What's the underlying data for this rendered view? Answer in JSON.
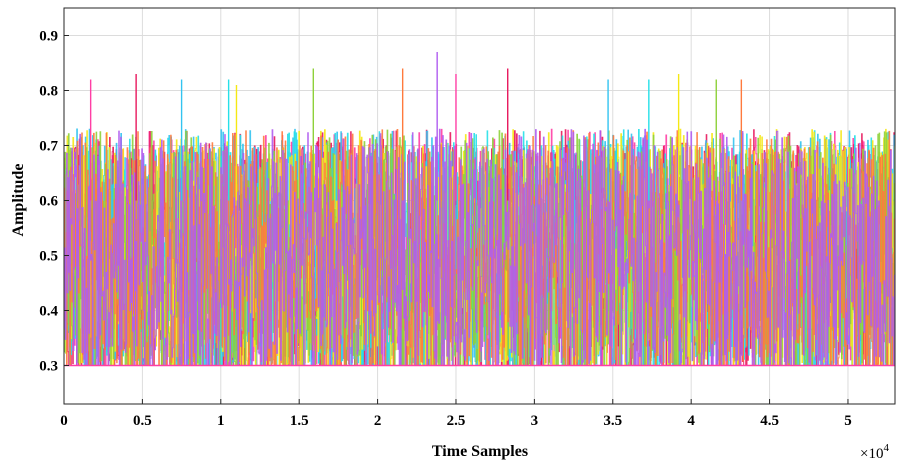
{
  "chart_data": {
    "type": "line",
    "title": "",
    "xlabel": "Time Samples",
    "ylabel": "Amplitude",
    "x_multiplier_base": "×10",
    "x_multiplier_exponent": "4",
    "xlim": [
      0,
      5.3
    ],
    "ylim": [
      0.23,
      0.95
    ],
    "x_ticks": [
      0,
      0.5,
      1,
      1.5,
      2,
      2.5,
      3,
      3.5,
      4,
      4.5,
      5
    ],
    "x_tick_labels": [
      "0",
      "0.5",
      "1",
      "1.5",
      "2",
      "2.5",
      "3",
      "3.5",
      "4",
      "4.5",
      "5"
    ],
    "y_ticks": [
      0.3,
      0.4,
      0.5,
      0.6,
      0.7,
      0.8,
      0.9
    ],
    "y_tick_labels": [
      "0.3",
      "0.4",
      "0.5",
      "0.6",
      "0.7",
      "0.8",
      "0.9"
    ],
    "grid": true,
    "legend": "none",
    "series_colors": [
      "#ff3ea5",
      "#e8175d",
      "#33c3f0",
      "#25e0e8",
      "#f5e814",
      "#8ed13a",
      "#ff7a3d",
      "#b05cf0"
    ],
    "signal_floor": 0.3,
    "typical_upper_band": 0.7,
    "peaks": [
      {
        "x": 0.17,
        "y": 0.82
      },
      {
        "x": 0.46,
        "y": 0.83
      },
      {
        "x": 0.75,
        "y": 0.82
      },
      {
        "x": 1.05,
        "y": 0.82
      },
      {
        "x": 1.1,
        "y": 0.81
      },
      {
        "x": 1.59,
        "y": 0.84
      },
      {
        "x": 2.16,
        "y": 0.84
      },
      {
        "x": 2.38,
        "y": 0.87
      },
      {
        "x": 2.5,
        "y": 0.83
      },
      {
        "x": 2.83,
        "y": 0.84
      },
      {
        "x": 3.47,
        "y": 0.82
      },
      {
        "x": 3.73,
        "y": 0.82
      },
      {
        "x": 3.92,
        "y": 0.83
      },
      {
        "x": 4.16,
        "y": 0.82
      },
      {
        "x": 4.32,
        "y": 0.82
      }
    ]
  }
}
